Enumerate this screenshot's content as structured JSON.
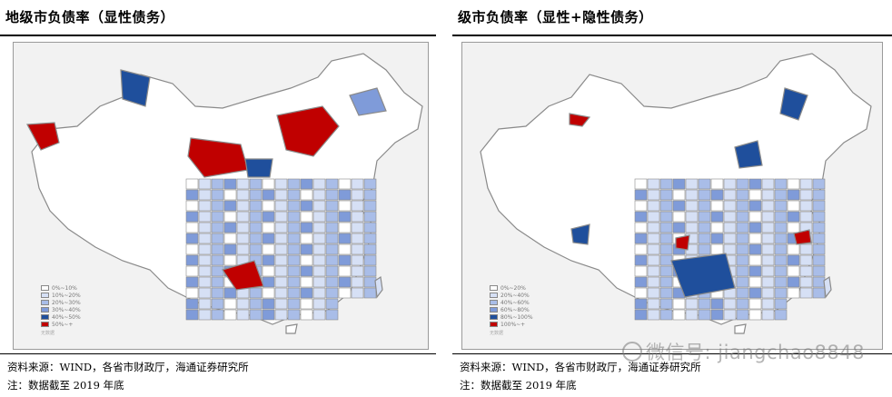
{
  "left": {
    "title": "地级市负债率（显性债务）",
    "legend": [
      {
        "label": "0%~10%",
        "color": "#ffffff"
      },
      {
        "label": "10%~20%",
        "color": "#d6e0f5"
      },
      {
        "label": "20%~30%",
        "color": "#a9bde8"
      },
      {
        "label": "30%~40%",
        "color": "#7f9bd9"
      },
      {
        "label": "40%~50%",
        "color": "#1f4f9c"
      },
      {
        "label": "50%~+",
        "color": "#c00000"
      }
    ],
    "legend_note": "无数据",
    "footer_source": "资料来源：WIND，各省市财政厅，海通证券研究所",
    "footer_note": "注：数据截至 2019 年底"
  },
  "right": {
    "title": "级市负债率（显性+隐性债务）",
    "legend": [
      {
        "label": "0%~20%",
        "color": "#ffffff"
      },
      {
        "label": "20%~40%",
        "color": "#d6e0f5"
      },
      {
        "label": "40%~60%",
        "color": "#a9bde8"
      },
      {
        "label": "60%~80%",
        "color": "#7f9bd9"
      },
      {
        "label": "80%~100%",
        "color": "#1f4f9c"
      },
      {
        "label": "100%~+",
        "color": "#c00000"
      }
    ],
    "legend_note": "无数据",
    "footer_source": "资料来源：WIND，各省市财政厅，海通证券研究所",
    "footer_note": "注：数据截至 2019 年底"
  },
  "watermark": "微信号: jiangchao8848",
  "colors": {
    "outline": "#8a8a8a",
    "white": "#ffffff",
    "light": "#d6e0f5",
    "mid": "#a9bde8",
    "blue": "#7f9bd9",
    "dark": "#1f4f9c",
    "red": "#c00000"
  }
}
